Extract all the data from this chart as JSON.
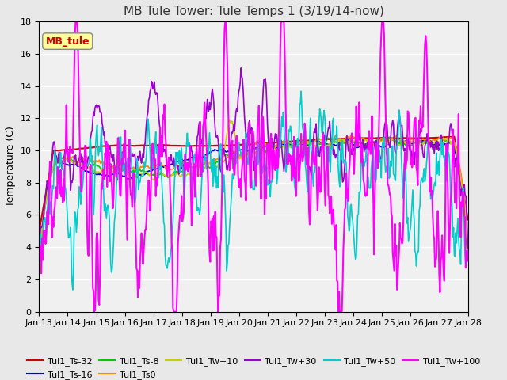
{
  "title": "MB Tule Tower: Tule Temps 1 (3/19/14-now)",
  "ylabel": "Temperature (C)",
  "ylim": [
    0,
    18
  ],
  "yticks": [
    0,
    2,
    4,
    6,
    8,
    10,
    12,
    14,
    16,
    18
  ],
  "x_labels": [
    "Jan 13",
    "Jan 14",
    "Jan 15",
    "Jan 16",
    "Jan 17",
    "Jan 18",
    "Jan 19",
    "Jan 20",
    "Jan 21",
    "Jan 22",
    "Jan 23",
    "Jan 24",
    "Jan 25",
    "Jan 26",
    "Jan 27",
    "Jan 28"
  ],
  "series_order": [
    "Tul1_Ts-32",
    "Tul1_Ts-16",
    "Tul1_Ts-8",
    "Tul1_Ts0",
    "Tul1_Tw+10",
    "Tul1_Tw+30",
    "Tul1_Tw+50",
    "Tul1_Tw+100"
  ],
  "series_colors": {
    "Tul1_Ts-32": "#cc0000",
    "Tul1_Ts-16": "#0000cc",
    "Tul1_Ts-8": "#00cc00",
    "Tul1_Ts0": "#ff8800",
    "Tul1_Tw+10": "#cccc00",
    "Tul1_Tw+30": "#9900cc",
    "Tul1_Tw+50": "#00cccc",
    "Tul1_Tw+100": "#ff00ff"
  },
  "series_lw": {
    "Tul1_Ts-32": 1.5,
    "Tul1_Ts-16": 1.2,
    "Tul1_Ts-8": 1.2,
    "Tul1_Ts0": 1.2,
    "Tul1_Tw+10": 1.2,
    "Tul1_Tw+30": 1.2,
    "Tul1_Tw+50": 1.2,
    "Tul1_Tw+100": 1.5
  },
  "inset_label": "MB_tule",
  "inset_color": "#cc0000",
  "inset_bg": "#ffff99",
  "background_color": "#e8e8e8",
  "plot_bg": "#f0f0f0",
  "grid_color": "#ffffff",
  "title_fontsize": 11,
  "axis_fontsize": 9,
  "tick_fontsize": 8,
  "legend_fontsize": 8
}
